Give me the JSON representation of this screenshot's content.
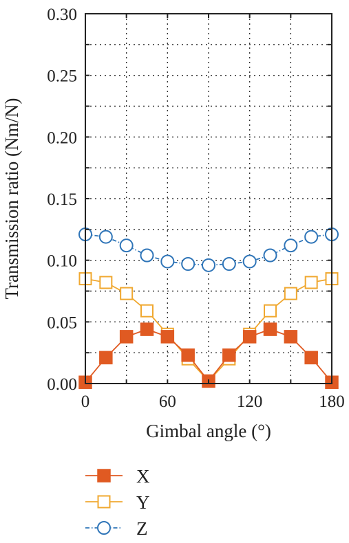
{
  "chart_data": {
    "type": "line",
    "xlabel": "Gimbal angle (°)",
    "ylabel": "Transmission ratio (Nm/N)",
    "xlim": [
      0,
      180
    ],
    "ylim": [
      0,
      0.3
    ],
    "xticks": [
      0,
      60,
      120,
      180
    ],
    "xtick_labels": [
      "0",
      "60",
      "120",
      "180"
    ],
    "yticks": [
      0,
      0.05,
      0.1,
      0.15,
      0.2,
      0.25,
      0.3
    ],
    "ytick_labels": [
      "0.00",
      "0.05",
      "0.10",
      "0.15",
      "0.20",
      "0.25",
      "0.30"
    ],
    "grid": true,
    "legend_position": "bottom-left, below plot",
    "x": [
      0,
      15,
      30,
      45,
      60,
      75,
      90,
      105,
      120,
      135,
      150,
      165,
      180
    ],
    "series": [
      {
        "name": "X",
        "color": "#e05a22",
        "marker": "filled-square",
        "values": [
          0.001,
          0.021,
          0.038,
          0.044,
          0.038,
          0.023,
          0.002,
          0.023,
          0.038,
          0.044,
          0.038,
          0.021,
          0.001
        ]
      },
      {
        "name": "Y",
        "color": "#f0a830",
        "marker": "open-square",
        "values": [
          0.085,
          0.082,
          0.073,
          0.059,
          0.04,
          0.02,
          0.002,
          0.02,
          0.04,
          0.059,
          0.073,
          0.082,
          0.085
        ]
      },
      {
        "name": "Z",
        "color": "#2f75b8",
        "marker": "open-circle",
        "values": [
          0.121,
          0.119,
          0.112,
          0.104,
          0.099,
          0.097,
          0.096,
          0.097,
          0.099,
          0.104,
          0.112,
          0.119,
          0.121
        ]
      }
    ]
  }
}
